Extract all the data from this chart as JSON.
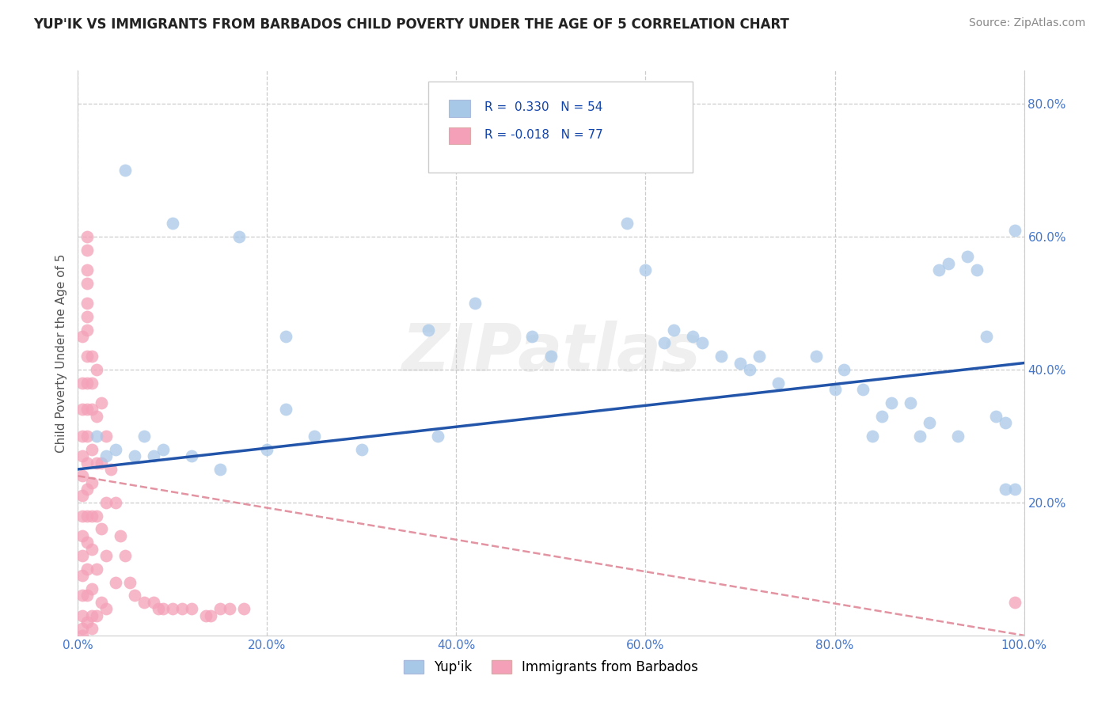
{
  "title": "YUP'IK VS IMMIGRANTS FROM BARBADOS CHILD POVERTY UNDER THE AGE OF 5 CORRELATION CHART",
  "source": "Source: ZipAtlas.com",
  "ylabel": "Child Poverty Under the Age of 5",
  "xlim": [
    0.0,
    1.0
  ],
  "ylim": [
    0.0,
    0.85
  ],
  "ytick_values": [
    0.2,
    0.4,
    0.6,
    0.8
  ],
  "xtick_values": [
    0.0,
    0.2,
    0.4,
    0.6,
    0.8,
    1.0
  ],
  "color_blue": "#a8c8e8",
  "color_pink": "#f4a0b8",
  "line_blue": "#2255aa",
  "line_pink": "#e08898",
  "background_color": "#ffffff",
  "grid_color": "#cccccc",
  "watermark": "ZIPatlas",
  "yupik_x": [
    0.05,
    0.1,
    0.17,
    0.22,
    0.22,
    0.25,
    0.3,
    0.37,
    0.38,
    0.42,
    0.48,
    0.5,
    0.58,
    0.6,
    0.62,
    0.63,
    0.65,
    0.66,
    0.68,
    0.7,
    0.71,
    0.72,
    0.74,
    0.78,
    0.8,
    0.81,
    0.83,
    0.84,
    0.85,
    0.86,
    0.88,
    0.89,
    0.9,
    0.91,
    0.92,
    0.93,
    0.94,
    0.95,
    0.96,
    0.97,
    0.98,
    0.98,
    0.99,
    0.99,
    0.02,
    0.03,
    0.04,
    0.06,
    0.07,
    0.08,
    0.09,
    0.12,
    0.15,
    0.2
  ],
  "yupik_y": [
    0.7,
    0.62,
    0.6,
    0.45,
    0.34,
    0.3,
    0.28,
    0.46,
    0.3,
    0.5,
    0.45,
    0.42,
    0.62,
    0.55,
    0.44,
    0.46,
    0.45,
    0.44,
    0.42,
    0.41,
    0.4,
    0.42,
    0.38,
    0.42,
    0.37,
    0.4,
    0.37,
    0.3,
    0.33,
    0.35,
    0.35,
    0.3,
    0.32,
    0.55,
    0.56,
    0.3,
    0.57,
    0.55,
    0.45,
    0.33,
    0.32,
    0.22,
    0.22,
    0.61,
    0.3,
    0.27,
    0.28,
    0.27,
    0.3,
    0.27,
    0.28,
    0.27,
    0.25,
    0.28
  ],
  "barbados_x": [
    0.005,
    0.005,
    0.005,
    0.005,
    0.005,
    0.005,
    0.005,
    0.005,
    0.005,
    0.005,
    0.005,
    0.005,
    0.005,
    0.005,
    0.005,
    0.01,
    0.01,
    0.01,
    0.01,
    0.01,
    0.01,
    0.01,
    0.01,
    0.01,
    0.01,
    0.01,
    0.01,
    0.01,
    0.01,
    0.01,
    0.01,
    0.01,
    0.01,
    0.015,
    0.015,
    0.015,
    0.015,
    0.015,
    0.015,
    0.015,
    0.015,
    0.015,
    0.015,
    0.02,
    0.02,
    0.02,
    0.02,
    0.02,
    0.02,
    0.025,
    0.025,
    0.025,
    0.025,
    0.03,
    0.03,
    0.03,
    0.03,
    0.035,
    0.04,
    0.04,
    0.045,
    0.05,
    0.055,
    0.06,
    0.07,
    0.08,
    0.085,
    0.09,
    0.1,
    0.11,
    0.12,
    0.135,
    0.14,
    0.15,
    0.16,
    0.175,
    0.99
  ],
  "barbados_y": [
    0.45,
    0.38,
    0.34,
    0.3,
    0.27,
    0.24,
    0.21,
    0.18,
    0.15,
    0.12,
    0.09,
    0.06,
    0.03,
    0.01,
    0.0,
    0.55,
    0.5,
    0.46,
    0.42,
    0.38,
    0.34,
    0.3,
    0.26,
    0.22,
    0.18,
    0.14,
    0.1,
    0.06,
    0.02,
    0.58,
    0.53,
    0.48,
    0.6,
    0.42,
    0.38,
    0.34,
    0.28,
    0.23,
    0.18,
    0.13,
    0.07,
    0.03,
    0.01,
    0.4,
    0.33,
    0.26,
    0.18,
    0.1,
    0.03,
    0.35,
    0.26,
    0.16,
    0.05,
    0.3,
    0.2,
    0.12,
    0.04,
    0.25,
    0.2,
    0.08,
    0.15,
    0.12,
    0.08,
    0.06,
    0.05,
    0.05,
    0.04,
    0.04,
    0.04,
    0.04,
    0.04,
    0.03,
    0.03,
    0.04,
    0.04,
    0.04,
    0.05
  ],
  "blue_line_x": [
    0.0,
    1.0
  ],
  "blue_line_y": [
    0.25,
    0.41
  ],
  "pink_line_x": [
    0.0,
    1.0
  ],
  "pink_line_y": [
    0.24,
    0.0
  ]
}
